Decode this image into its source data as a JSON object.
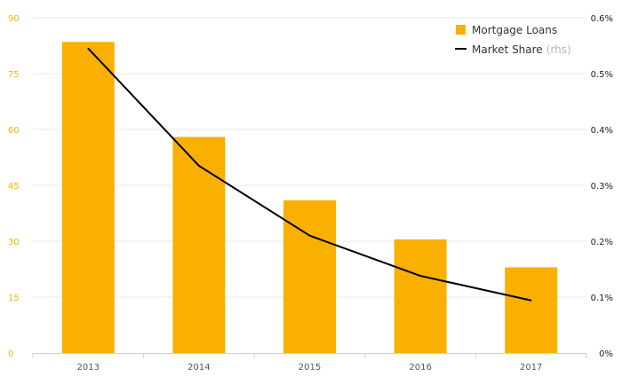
{
  "chart_data": {
    "type": "bar",
    "categories": [
      "2013",
      "2014",
      "2015",
      "2016",
      "2017"
    ],
    "left_axis": {
      "min": 0,
      "max": 90,
      "ticks": [
        "0",
        "15",
        "30",
        "45",
        "60",
        "75",
        "90"
      ]
    },
    "right_axis": {
      "min": 0,
      "max": 0.6,
      "ticks": [
        "0%",
        "0.1%",
        "0.2%",
        "0.3%",
        "0.4%",
        "0.5%",
        "0.6%"
      ]
    },
    "series": [
      {
        "name": "Mortgage Loans",
        "type": "bar",
        "axis": "left",
        "color": "#f9b000",
        "values": [
          83.5,
          58,
          41,
          30.5,
          23
        ]
      },
      {
        "name": "Market Share",
        "name_suffix": "(rhs)",
        "type": "line",
        "axis": "right",
        "color": "#000000",
        "values": [
          0.545,
          0.335,
          0.21,
          0.138,
          0.094
        ]
      }
    ],
    "legend_position": "top-right",
    "grid": true
  }
}
